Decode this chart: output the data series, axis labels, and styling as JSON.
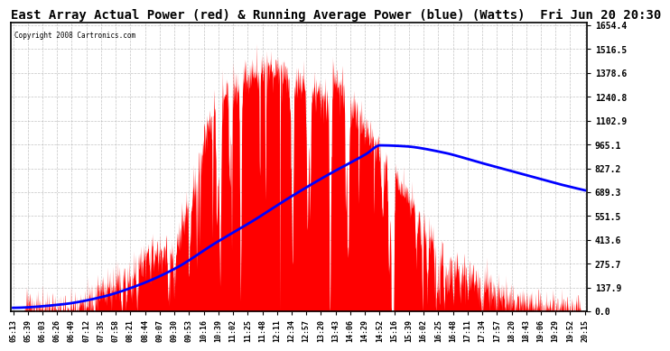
{
  "title": "East Array Actual Power (red) & Running Average Power (blue) (Watts)  Fri Jun 20 20:30",
  "copyright": "Copyright 2008 Cartronics.com",
  "yticks": [
    0.0,
    137.9,
    275.7,
    413.6,
    551.5,
    689.3,
    827.2,
    965.1,
    1102.9,
    1240.8,
    1378.6,
    1516.5,
    1654.4
  ],
  "ymax": 1654.4,
  "ymin": 0.0,
  "background_color": "#ffffff",
  "plot_bg_color": "#ffffff",
  "grid_color": "#aaaaaa",
  "actual_color": "#ff0000",
  "avg_color": "#0000ff",
  "title_fontsize": 10,
  "xtick_labels": [
    "05:13",
    "05:39",
    "06:03",
    "06:26",
    "06:49",
    "07:12",
    "07:35",
    "07:58",
    "08:21",
    "08:44",
    "09:07",
    "09:30",
    "09:53",
    "10:16",
    "10:39",
    "11:02",
    "11:25",
    "11:48",
    "12:11",
    "12:34",
    "12:57",
    "13:20",
    "13:43",
    "14:06",
    "14:29",
    "14:52",
    "15:16",
    "15:39",
    "16:02",
    "16:25",
    "16:48",
    "17:11",
    "17:34",
    "17:57",
    "18:20",
    "18:43",
    "19:06",
    "19:29",
    "19:52",
    "20:15"
  ],
  "avg_control_x": [
    5.22,
    6.5,
    7.5,
    8.5,
    9.5,
    10.5,
    11.5,
    12.5,
    13.5,
    14.5,
    14.87,
    15.5,
    16.5,
    17.5,
    18.5,
    19.5,
    20.25
  ],
  "avg_control_y": [
    20,
    40,
    80,
    150,
    250,
    390,
    520,
    660,
    790,
    910,
    960,
    955,
    920,
    860,
    800,
    740,
    700
  ]
}
